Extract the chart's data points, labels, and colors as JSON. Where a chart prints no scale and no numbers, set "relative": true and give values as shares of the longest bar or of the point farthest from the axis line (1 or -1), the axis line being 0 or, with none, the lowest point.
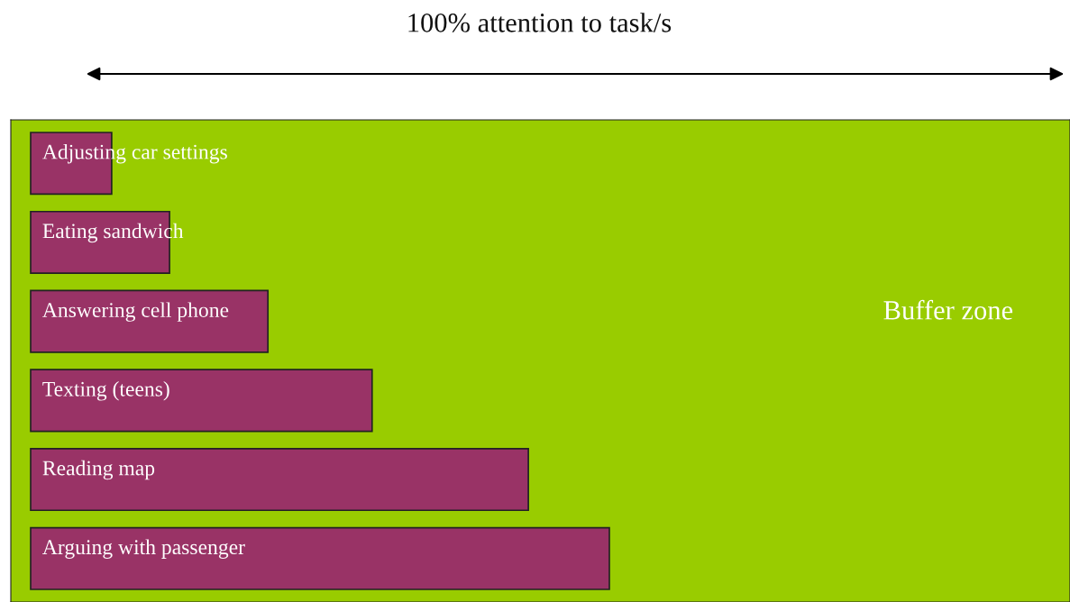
{
  "chart_data": {
    "type": "bar",
    "orientation": "horizontal",
    "relative": true,
    "title": "100% attention to task/s",
    "categories": [
      "Adjusting car settings",
      "Eating sandwich",
      "Answering cell phone",
      "Texting (teens)",
      "Reading map",
      "Arguing with passenger"
    ],
    "values": [
      0.14,
      0.24,
      0.41,
      0.59,
      0.86,
      1
    ],
    "color": "#993366",
    "annotations": [
      "Buffer zone"
    ]
  }
}
